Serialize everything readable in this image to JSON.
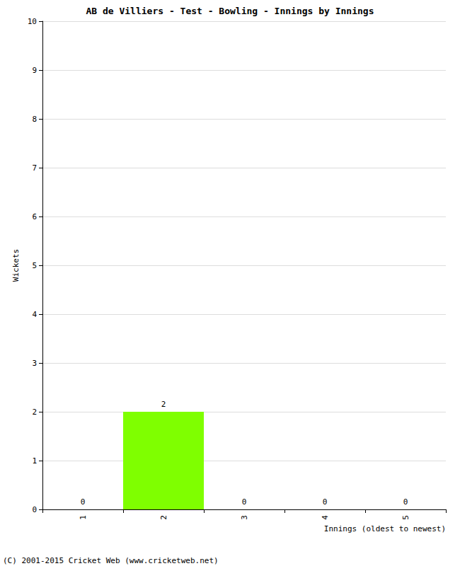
{
  "chart_data": {
    "type": "bar",
    "title": "AB de Villiers - Test - Bowling - Innings by Innings",
    "x_label": "Innings (oldest to newest)",
    "y_label": "Wickets",
    "categories": [
      "1",
      "2",
      "3",
      "4",
      "5"
    ],
    "values": [
      0,
      2,
      0,
      0,
      0
    ],
    "color": "#7fff00",
    "ylim": [
      0,
      10
    ],
    "yticks": [
      0,
      1,
      2,
      3,
      4,
      5,
      6,
      7,
      8,
      9,
      10
    ],
    "grid": true,
    "data_labels": true,
    "annotations": [
      "(C) 2001-2015 Cricket Web (www.cricketweb.net)"
    ]
  }
}
